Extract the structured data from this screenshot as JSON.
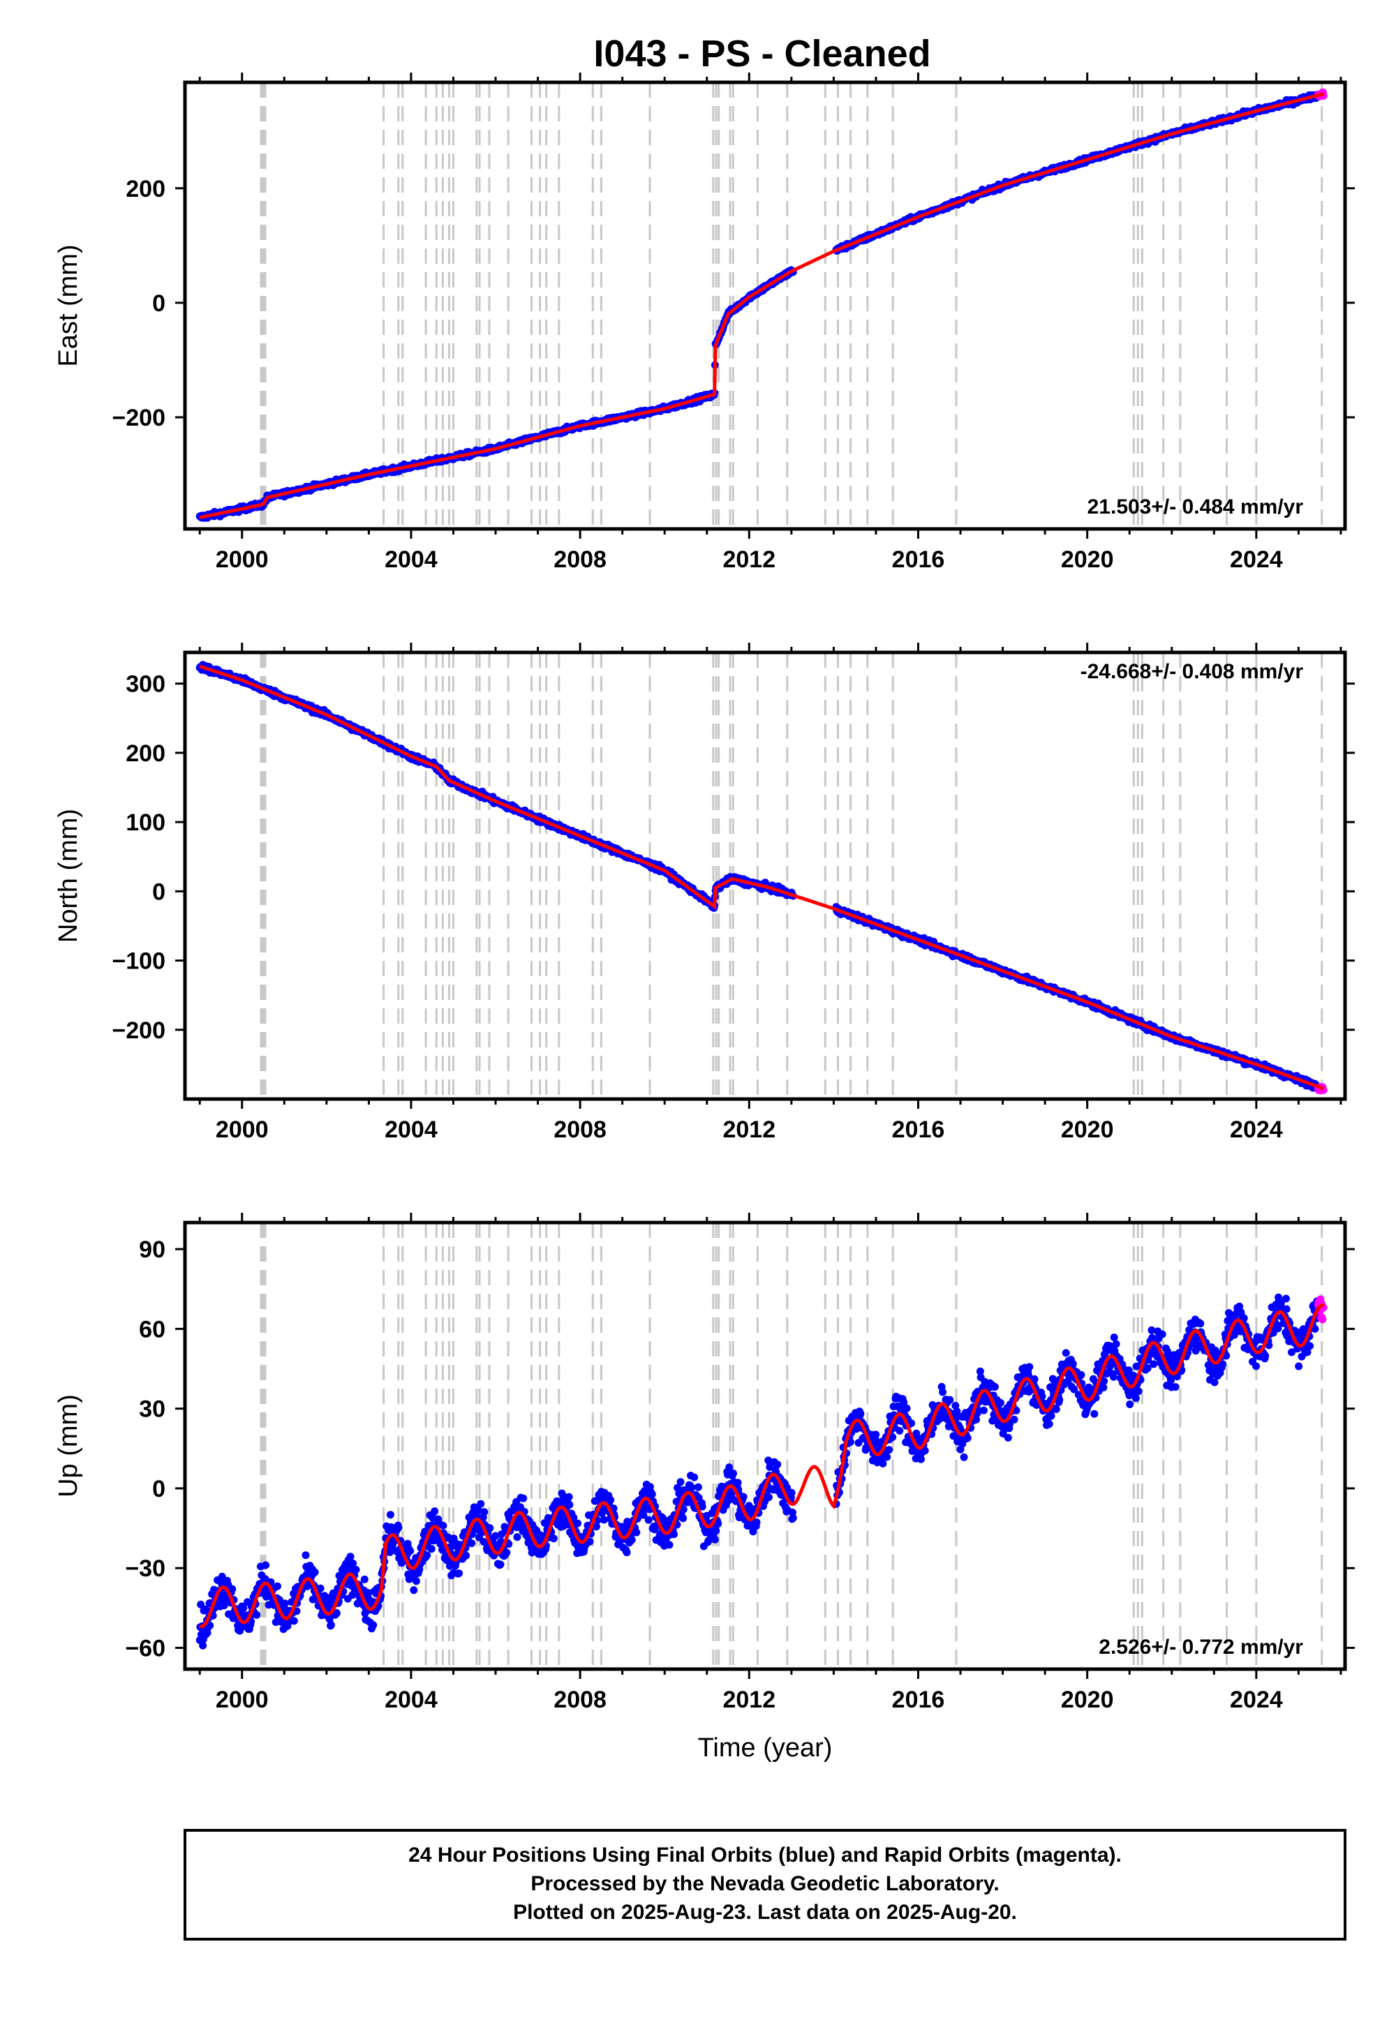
{
  "title": "I043  - PS - Cleaned",
  "footer": {
    "line1": "24 Hour Positions Using Final Orbits (blue) and Rapid Orbits (magenta).",
    "line2": "Processed by the Nevada Geodetic Laboratory.",
    "line3": "Plotted on 2025-Aug-23. Last data on 2025-Aug-20."
  },
  "colors": {
    "final": "#0000ff",
    "rapid": "#ff00ff",
    "model": "#ff0000",
    "breaks": "#c8c8c8"
  },
  "chart_data": [
    {
      "type": "scatter",
      "component": "East",
      "ylabel": "East (mm)",
      "xlim": [
        1998.65,
        2026.1
      ],
      "ylim": [
        -395,
        385
      ],
      "xticks": [
        2000,
        2004,
        2008,
        2012,
        2016,
        2020,
        2024
      ],
      "yticks": [
        -200,
        0,
        200
      ],
      "rate_label": "21.503+/- 0.484 mm/yr",
      "rate_position": "bottom-right",
      "series": [
        {
          "values_x": [
            1999.0,
            2000.0,
            2000.5,
            2000.6,
            2003.0,
            2004.0,
            2006.0,
            2008.0,
            2010.0,
            2011.18,
            2011.2,
            2011.5,
            2012.0,
            2013.0,
            2014.0,
            2016.0,
            2018.0,
            2020.0,
            2022.0,
            2024.0,
            2025.6
          ],
          "values_y": [
            -375,
            -360,
            -352,
            -340,
            -300,
            -285,
            -255,
            -215,
            -185,
            -160,
            -75,
            -20,
            10,
            55,
            90,
            150,
            205,
            250,
            295,
            335,
            365
          ]
        }
      ]
    },
    {
      "type": "scatter",
      "component": "North",
      "ylabel": "North (mm)",
      "xlim": [
        1998.65,
        2026.1
      ],
      "ylim": [
        -300,
        345
      ],
      "xticks": [
        2000,
        2004,
        2008,
        2012,
        2016,
        2020,
        2024
      ],
      "yticks": [
        -200,
        -100,
        0,
        100,
        200,
        300
      ],
      "rate_label": "-24.668+/- 0.408 mm/yr",
      "rate_position": "top-right",
      "series": [
        {
          "values_x": [
            1999.0,
            2000.0,
            2002.0,
            2004.0,
            2004.6,
            2004.9,
            2006.0,
            2008.0,
            2010.0,
            2011.18,
            2011.2,
            2011.6,
            2012.5,
            2013.5,
            2014.0,
            2016.0,
            2018.0,
            2020.0,
            2022.0,
            2024.0,
            2025.6
          ],
          "values_y": [
            325,
            305,
            255,
            195,
            180,
            160,
            130,
            80,
            30,
            -22,
            5,
            18,
            5,
            -15,
            -25,
            -70,
            -115,
            -160,
            -210,
            -250,
            -285
          ]
        }
      ]
    },
    {
      "type": "scatter",
      "component": "Up",
      "ylabel": "Up (mm)",
      "xlabel": "Time (year)",
      "xlim": [
        1998.65,
        2026.1
      ],
      "ylim": [
        -68,
        100
      ],
      "xticks": [
        2000,
        2004,
        2008,
        2012,
        2016,
        2020,
        2024
      ],
      "yticks": [
        -60,
        -30,
        0,
        30,
        60,
        90
      ],
      "rate_label": "2.526+/- 0.772 mm/yr",
      "rate_position": "bottom-right",
      "series": [
        {
          "values_x": [
            1999.0,
            2001.0,
            2003.3,
            2003.4,
            2005.0,
            2007.0,
            2010.0,
            2012.0,
            2013.2,
            2014.0,
            2014.3,
            2016.0,
            2018.0,
            2020.0,
            2022.0,
            2024.0,
            2025.6
          ],
          "values_y": [
            -45,
            -42,
            -38,
            -25,
            -20,
            -15,
            -10,
            -5,
            2,
            0,
            18,
            22,
            32,
            40,
            50,
            58,
            62
          ],
          "seasonal_amplitude_mm": 7
        }
      ]
    }
  ],
  "equipment_breaks": [
    2000.45,
    2000.5,
    2000.55,
    2003.35,
    2003.7,
    2003.8,
    2004.35,
    2004.6,
    2004.75,
    2004.9,
    2005.0,
    2005.55,
    2005.62,
    2005.85,
    2006.3,
    2006.85,
    2007.05,
    2007.2,
    2007.5,
    2008.3,
    2008.5,
    2009.65,
    2011.15,
    2011.22,
    2011.28,
    2011.55,
    2011.62,
    2012.2,
    2012.9,
    2013.8,
    2014.1,
    2014.4,
    2014.8,
    2015.4,
    2016.9,
    2021.1,
    2021.2,
    2021.3,
    2021.8,
    2022.2,
    2023.3,
    2024.0,
    2025.55
  ]
}
